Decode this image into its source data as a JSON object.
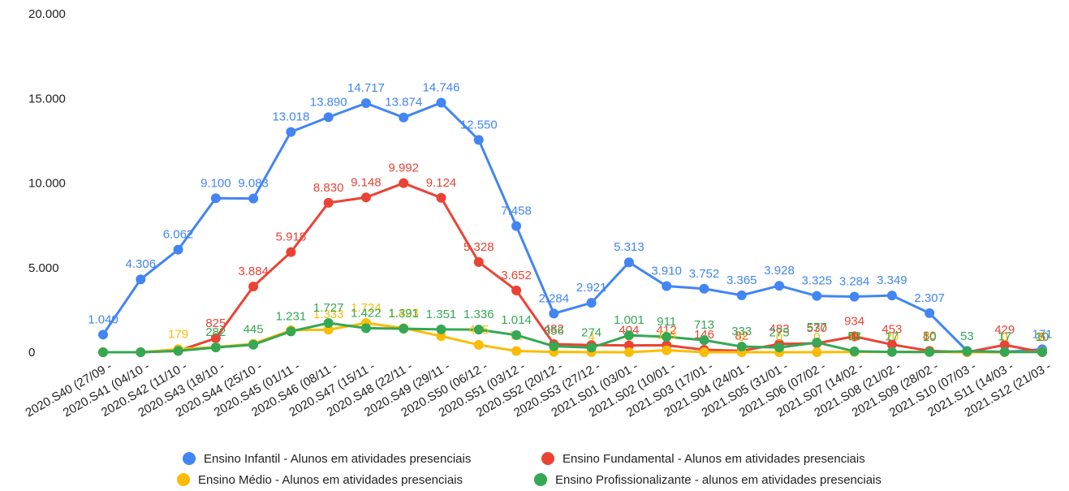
{
  "chart_data": {
    "type": "line",
    "categories": [
      "2020.S40 (27/09 -",
      "2020.S41 (04/10 -",
      "2020.S42 (11/10 -",
      "2020.S43 (18/10 -",
      "2020.S44 (25/10 -",
      "2020.S45 (01/11 -",
      "2020.S46 (08/11 -",
      "2020.S47 (15/11 -",
      "2020.S48 (22/11 -",
      "2020.S49 (29/11 -",
      "2020.S50 (06/12 -",
      "2020.S51 (03/12 -",
      "2020.S52 (20/12 -",
      "2020.S53 (27/12 -",
      "2021.S01 (03/01 -",
      "2021.S02 (10/01 -",
      "2021.S03 (17/01 -",
      "2021.S04 (24/01 -",
      "2021.S05 (31/01 -",
      "2021.S06 (07/02 -",
      "2021.S07 (14/02 -",
      "2021.S08 (21/02 -",
      "2021.S09 (28/02 -",
      "2021.S10 (07/03 -",
      "2021.S11 (14/03 -",
      "2021.S12 (21/03 -"
    ],
    "series": [
      {
        "name": "Ensino Infantil - Alunos em atividades presenciais",
        "color": "#4285f4",
        "values": [
          1040,
          4306,
          6062,
          9100,
          9083,
          13018,
          13890,
          14717,
          13874,
          14746,
          12550,
          7458,
          2284,
          2921,
          5313,
          3910,
          3752,
          3365,
          3928,
          3325,
          3284,
          3349,
          2307,
          80,
          20,
          171
        ],
        "value_labels": [
          "1.040",
          "4.306",
          "6.062",
          "9.100",
          "9.083",
          "13.018",
          "13.890",
          "14.717",
          "13.874",
          "14.746",
          "12.550",
          "7.458",
          "2.284",
          "2.921",
          "5.313",
          "3.910",
          "3.752",
          "3.365",
          "3.928",
          "3.325",
          "3.284",
          "3.349",
          "2.307",
          null,
          null,
          "171"
        ]
      },
      {
        "name": "Ensino Fundamental - Alunos em atividades presenciais",
        "color": "#ea4335",
        "values": [
          0,
          0,
          79,
          825,
          3884,
          5918,
          8830,
          9148,
          9992,
          9124,
          5328,
          3652,
          482,
          420,
          404,
          412,
          146,
          82,
          483,
          530,
          934,
          453,
          80,
          0,
          429,
          5
        ],
        "value_labels": [
          null,
          null,
          null,
          "825",
          "3.884",
          "5.918",
          "8.830",
          "9.148",
          "9.992",
          "9.124",
          "5.328",
          "3.652",
          "482",
          null,
          "404",
          "412",
          "146",
          "82",
          "483",
          "530",
          "934",
          "453",
          "80",
          null,
          "429",
          "5"
        ]
      },
      {
        "name": "Ensino Médio - Alunos em atividades presenciais",
        "color": "#fbbc04",
        "values": [
          0,
          0,
          179,
          300,
          500,
          1300,
          1333,
          1724,
          1423,
          950,
          435,
          71,
          20,
          4,
          0,
          113,
          0,
          0,
          0,
          0,
          15,
          20,
          20,
          0,
          0,
          30
        ],
        "value_labels": [
          null,
          null,
          "179",
          null,
          null,
          null,
          "1.333",
          "1.724",
          "1.423",
          null,
          "435",
          "71",
          null,
          "4",
          "0",
          "113",
          null,
          "0",
          "0",
          "0",
          "15",
          "20",
          "20",
          null,
          "0",
          "30"
        ]
      },
      {
        "name": "Ensino Profissionalizante - alunos em atividades presenciais",
        "color": "#34a853",
        "values": [
          0,
          0,
          79,
          282,
          445,
          1231,
          1727,
          1422,
          1391,
          1351,
          1336,
          1014,
          356,
          274,
          1001,
          911,
          713,
          333,
          275,
          577,
          53,
          17,
          10,
          53,
          17,
          10
        ],
        "value_labels": [
          null,
          null,
          null,
          "282",
          "445",
          "1.231",
          "1.727",
          "1.422",
          "1.391",
          "1.351",
          "1.336",
          "1.014",
          "356",
          "274",
          "1.001",
          "911",
          "713",
          "333",
          "275",
          "577",
          "53",
          "17",
          "10",
          "53",
          "17",
          "10"
        ]
      }
    ],
    "ylim": [
      0,
      20000
    ],
    "yticks": [
      0,
      {
        "value": 5000,
        "label": "5.000"
      },
      {
        "value": 10000,
        "label": "10.000"
      },
      {
        "value": 15000,
        "label": "15.000"
      },
      {
        "value": 20000,
        "label": "20.000"
      }
    ]
  }
}
